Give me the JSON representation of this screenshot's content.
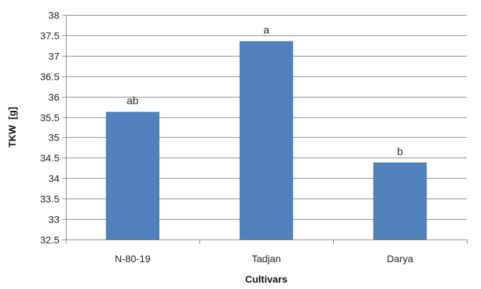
{
  "chart_data": {
    "type": "bar",
    "categories": [
      "N-80-19",
      "Tadjan",
      "Darya"
    ],
    "values": [
      35.62,
      37.35,
      34.38
    ],
    "data_labels": [
      "ab",
      "a",
      "b"
    ],
    "title": "",
    "xlabel": "Cultivars",
    "ylabel": "TKW  [g]",
    "ylim": [
      32.5,
      38
    ],
    "ytick_step": 0.5,
    "yticks": [
      "32.5",
      "33",
      "33.5",
      "34",
      "34.5",
      "35",
      "35.5",
      "36",
      "36.5",
      "37",
      "37.5",
      "38"
    ],
    "grid": true,
    "legend": "none",
    "colors": {
      "bar": "#4f81bd",
      "bar_edge": "#3f6e9f",
      "grid": "#8c8c8c",
      "axis": "#8c8c8c"
    }
  }
}
